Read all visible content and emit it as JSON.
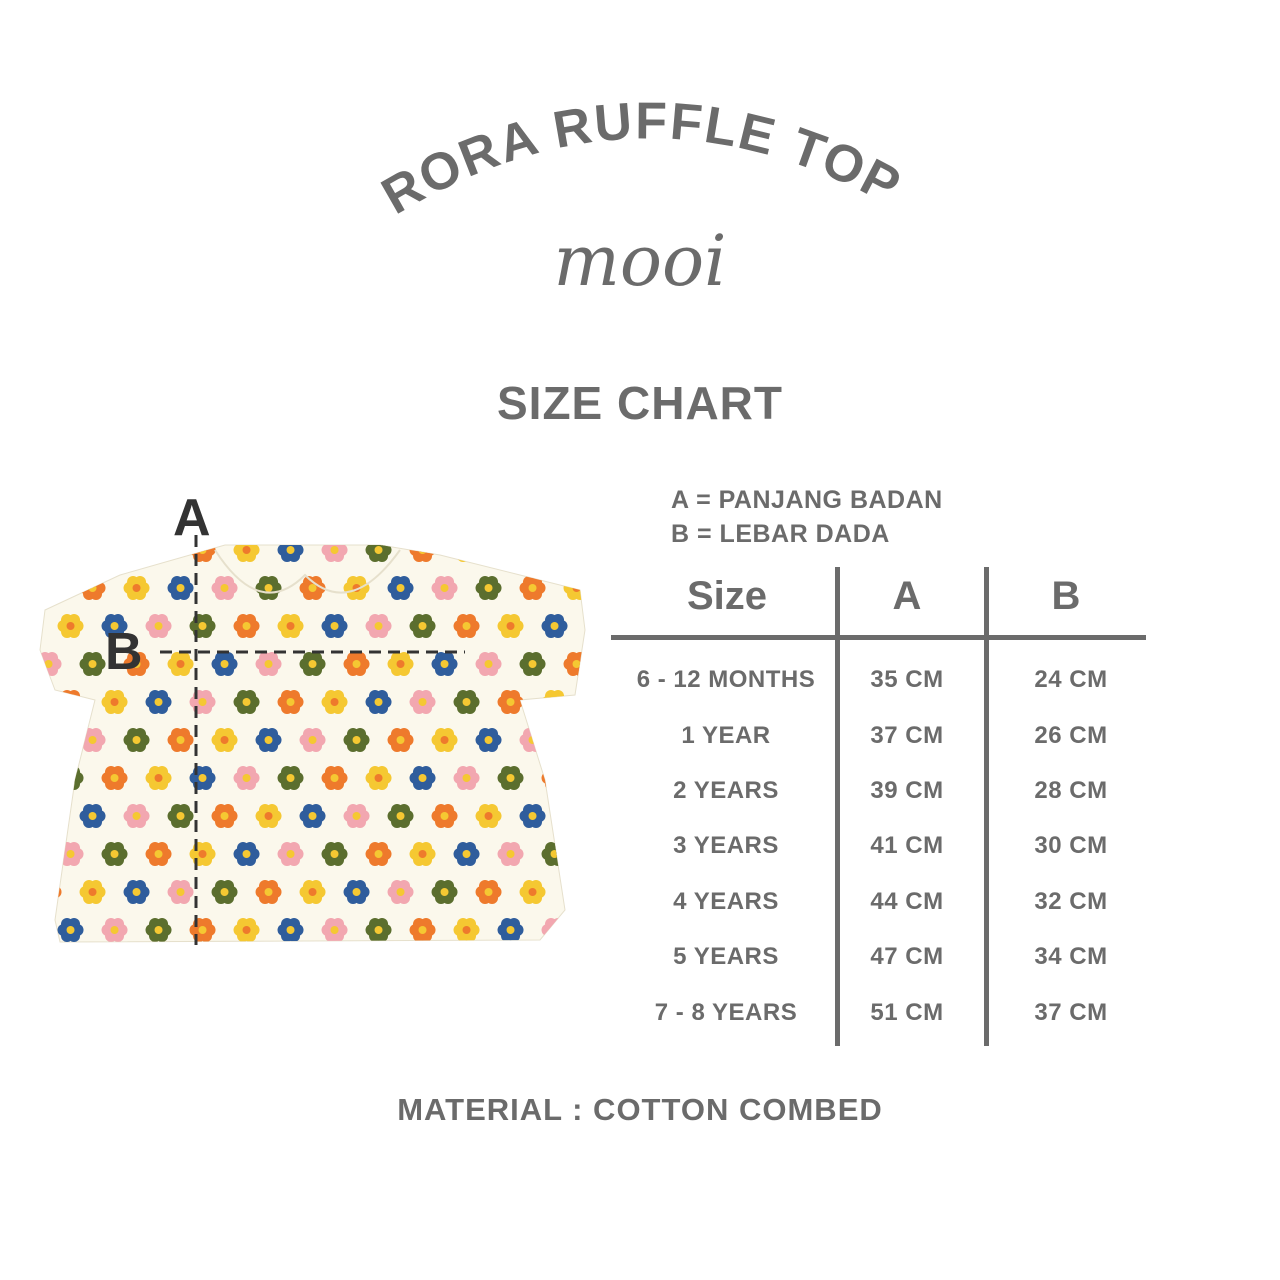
{
  "product_title": "RORA RUFFLE TOP",
  "brand": "mooi",
  "heading": "SIZE CHART",
  "legend": [
    "A = PANJANG BADAN",
    "B = LEBAR DADA"
  ],
  "diagram": {
    "label_a": "A",
    "label_b": "B"
  },
  "table": {
    "headers": [
      "Size",
      "A",
      "B"
    ],
    "rows": [
      [
        "6 - 12 MONTHS",
        "35 CM",
        "24 CM"
      ],
      [
        "1 YEAR",
        "37 CM",
        "26 CM"
      ],
      [
        "2 YEARS",
        "39 CM",
        "28 CM"
      ],
      [
        "3 YEARS",
        "41 CM",
        "30 CM"
      ],
      [
        "4 YEARS",
        "44 CM",
        "32 CM"
      ],
      [
        "5 YEARS",
        "47 CM",
        "34 CM"
      ],
      [
        "7 - 8 YEARS",
        "51 CM",
        "37 CM"
      ]
    ]
  },
  "material": "MATERIAL : COTTON COMBED",
  "colors": {
    "text": "#6b6b6b",
    "fabric": "#fbf8ec",
    "flowers": [
      "#f2a7b0",
      "#f5c832",
      "#5b6e2e",
      "#2f5d9c",
      "#ee7a2c"
    ]
  }
}
